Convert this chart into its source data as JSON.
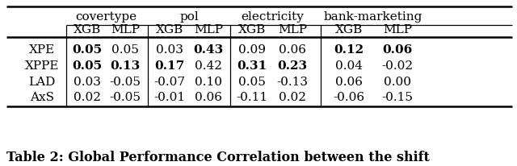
{
  "caption": "Table 2: Global Performance Correlation between the shift",
  "col_groups": [
    "covertype",
    "pol",
    "electricity",
    "bank-marketing"
  ],
  "subheaders": [
    "XGB",
    "MLP",
    "XGB",
    "MLP",
    "XGB",
    "MLP",
    "XGB",
    "MLP"
  ],
  "row_labels": [
    "XPE",
    "XPPE",
    "LAD",
    "AxS"
  ],
  "data": [
    [
      "0.05",
      "0.05",
      "0.03",
      "0.43",
      "0.09",
      "0.06",
      "0.12",
      "0.06"
    ],
    [
      "0.05",
      "0.13",
      "0.17",
      "0.42",
      "0.31",
      "0.23",
      "0.04",
      "-0.02"
    ],
    [
      "0.03",
      "-0.05",
      "-0.07",
      "0.10",
      "0.05",
      "-0.13",
      "0.06",
      "0.00"
    ],
    [
      "0.02",
      "-0.05",
      "-0.01",
      "0.06",
      "-0.11",
      "0.02",
      "-0.06",
      "-0.15"
    ]
  ],
  "bold": [
    [
      true,
      false,
      false,
      true,
      false,
      false,
      true,
      true
    ],
    [
      true,
      true,
      true,
      false,
      true,
      true,
      false,
      false
    ],
    [
      false,
      false,
      false,
      false,
      false,
      false,
      false,
      false
    ],
    [
      false,
      false,
      false,
      false,
      false,
      false,
      false,
      false
    ]
  ],
  "bg_color": "#ffffff",
  "text_color": "#000000",
  "fs_group": 11,
  "fs_sub": 11,
  "fs_data": 11,
  "fs_caption": 11.5,
  "lw_thick": 1.8,
  "lw_thin": 0.9
}
